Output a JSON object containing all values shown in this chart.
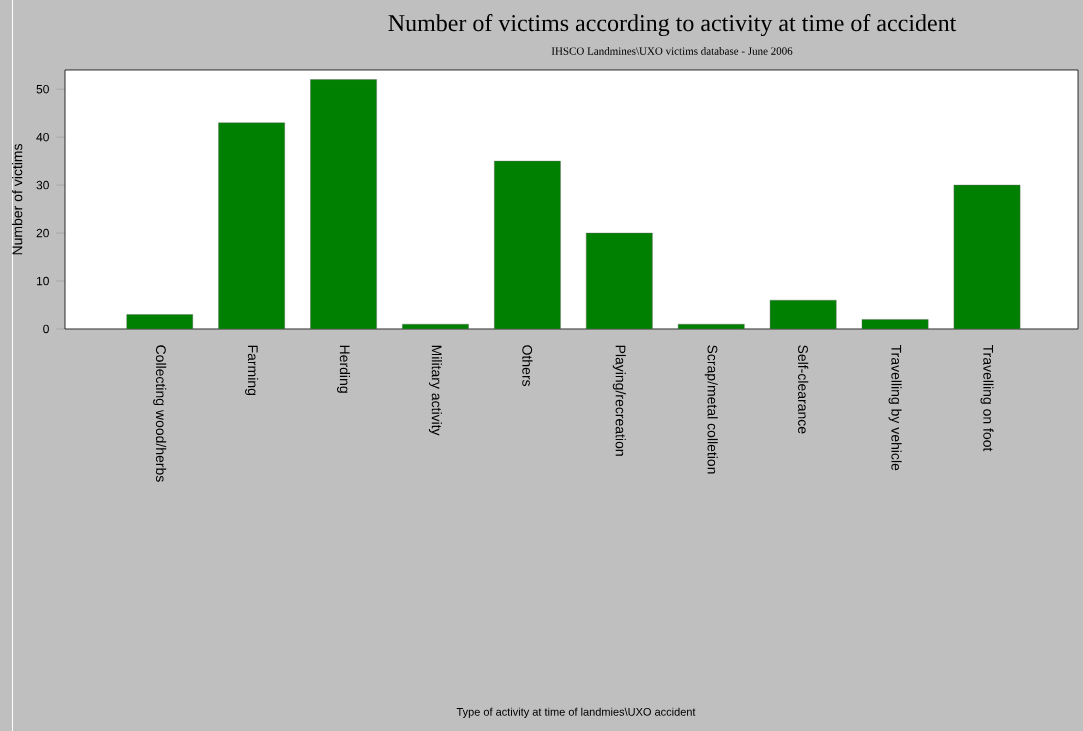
{
  "chart_data": {
    "type": "bar",
    "title": "Number of victims according to activity at time of accident",
    "subtitle": "IHSCO Landmines\\UXO victims database - June 2006",
    "annotations": [
      "Type of activity at time of landmies\\UXO accident"
    ],
    "ylabel": "Number of victims",
    "categories": [
      "Collecting wood/herbs",
      "Farming",
      "Herding",
      "Military activity",
      "Others",
      "Playing/recreation",
      "Scrap/metal colletion",
      "Self-clearance",
      "Travelling by vehicle",
      "Travelling on foot"
    ],
    "values": [
      3,
      43,
      52,
      1,
      35,
      20,
      1,
      6,
      2,
      30
    ],
    "color": "#008000",
    "ylim": [
      0,
      54
    ],
    "yticks": [
      0,
      10,
      20,
      30,
      40,
      50
    ],
    "grid": false
  }
}
